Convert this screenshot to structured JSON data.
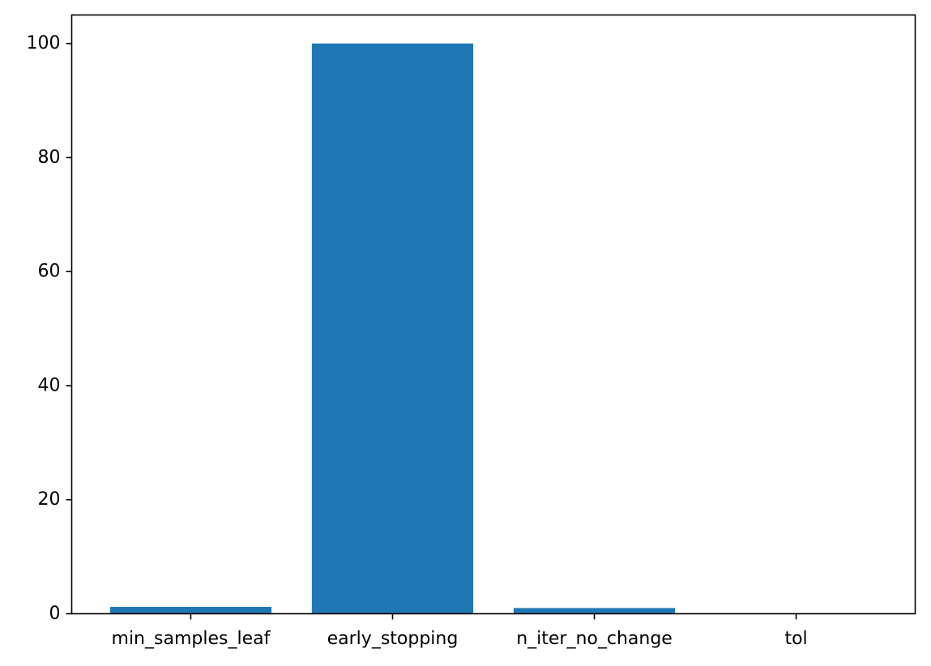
{
  "chart_data": {
    "type": "bar",
    "title": "",
    "xlabel": "",
    "ylabel": "",
    "categories": [
      "min_samples_leaf",
      "early_stopping",
      "n_iter_no_change",
      "tol"
    ],
    "values": [
      1.2,
      100,
      1.0,
      0.0001
    ],
    "ylim": [
      0,
      105
    ],
    "yticks": [
      0,
      20,
      40,
      60,
      80,
      100
    ],
    "ytick_labels": [
      "0",
      "20",
      "40",
      "60",
      "80",
      "100"
    ],
    "grid": false,
    "legend": "none",
    "bar_color": "#1f77b4"
  }
}
